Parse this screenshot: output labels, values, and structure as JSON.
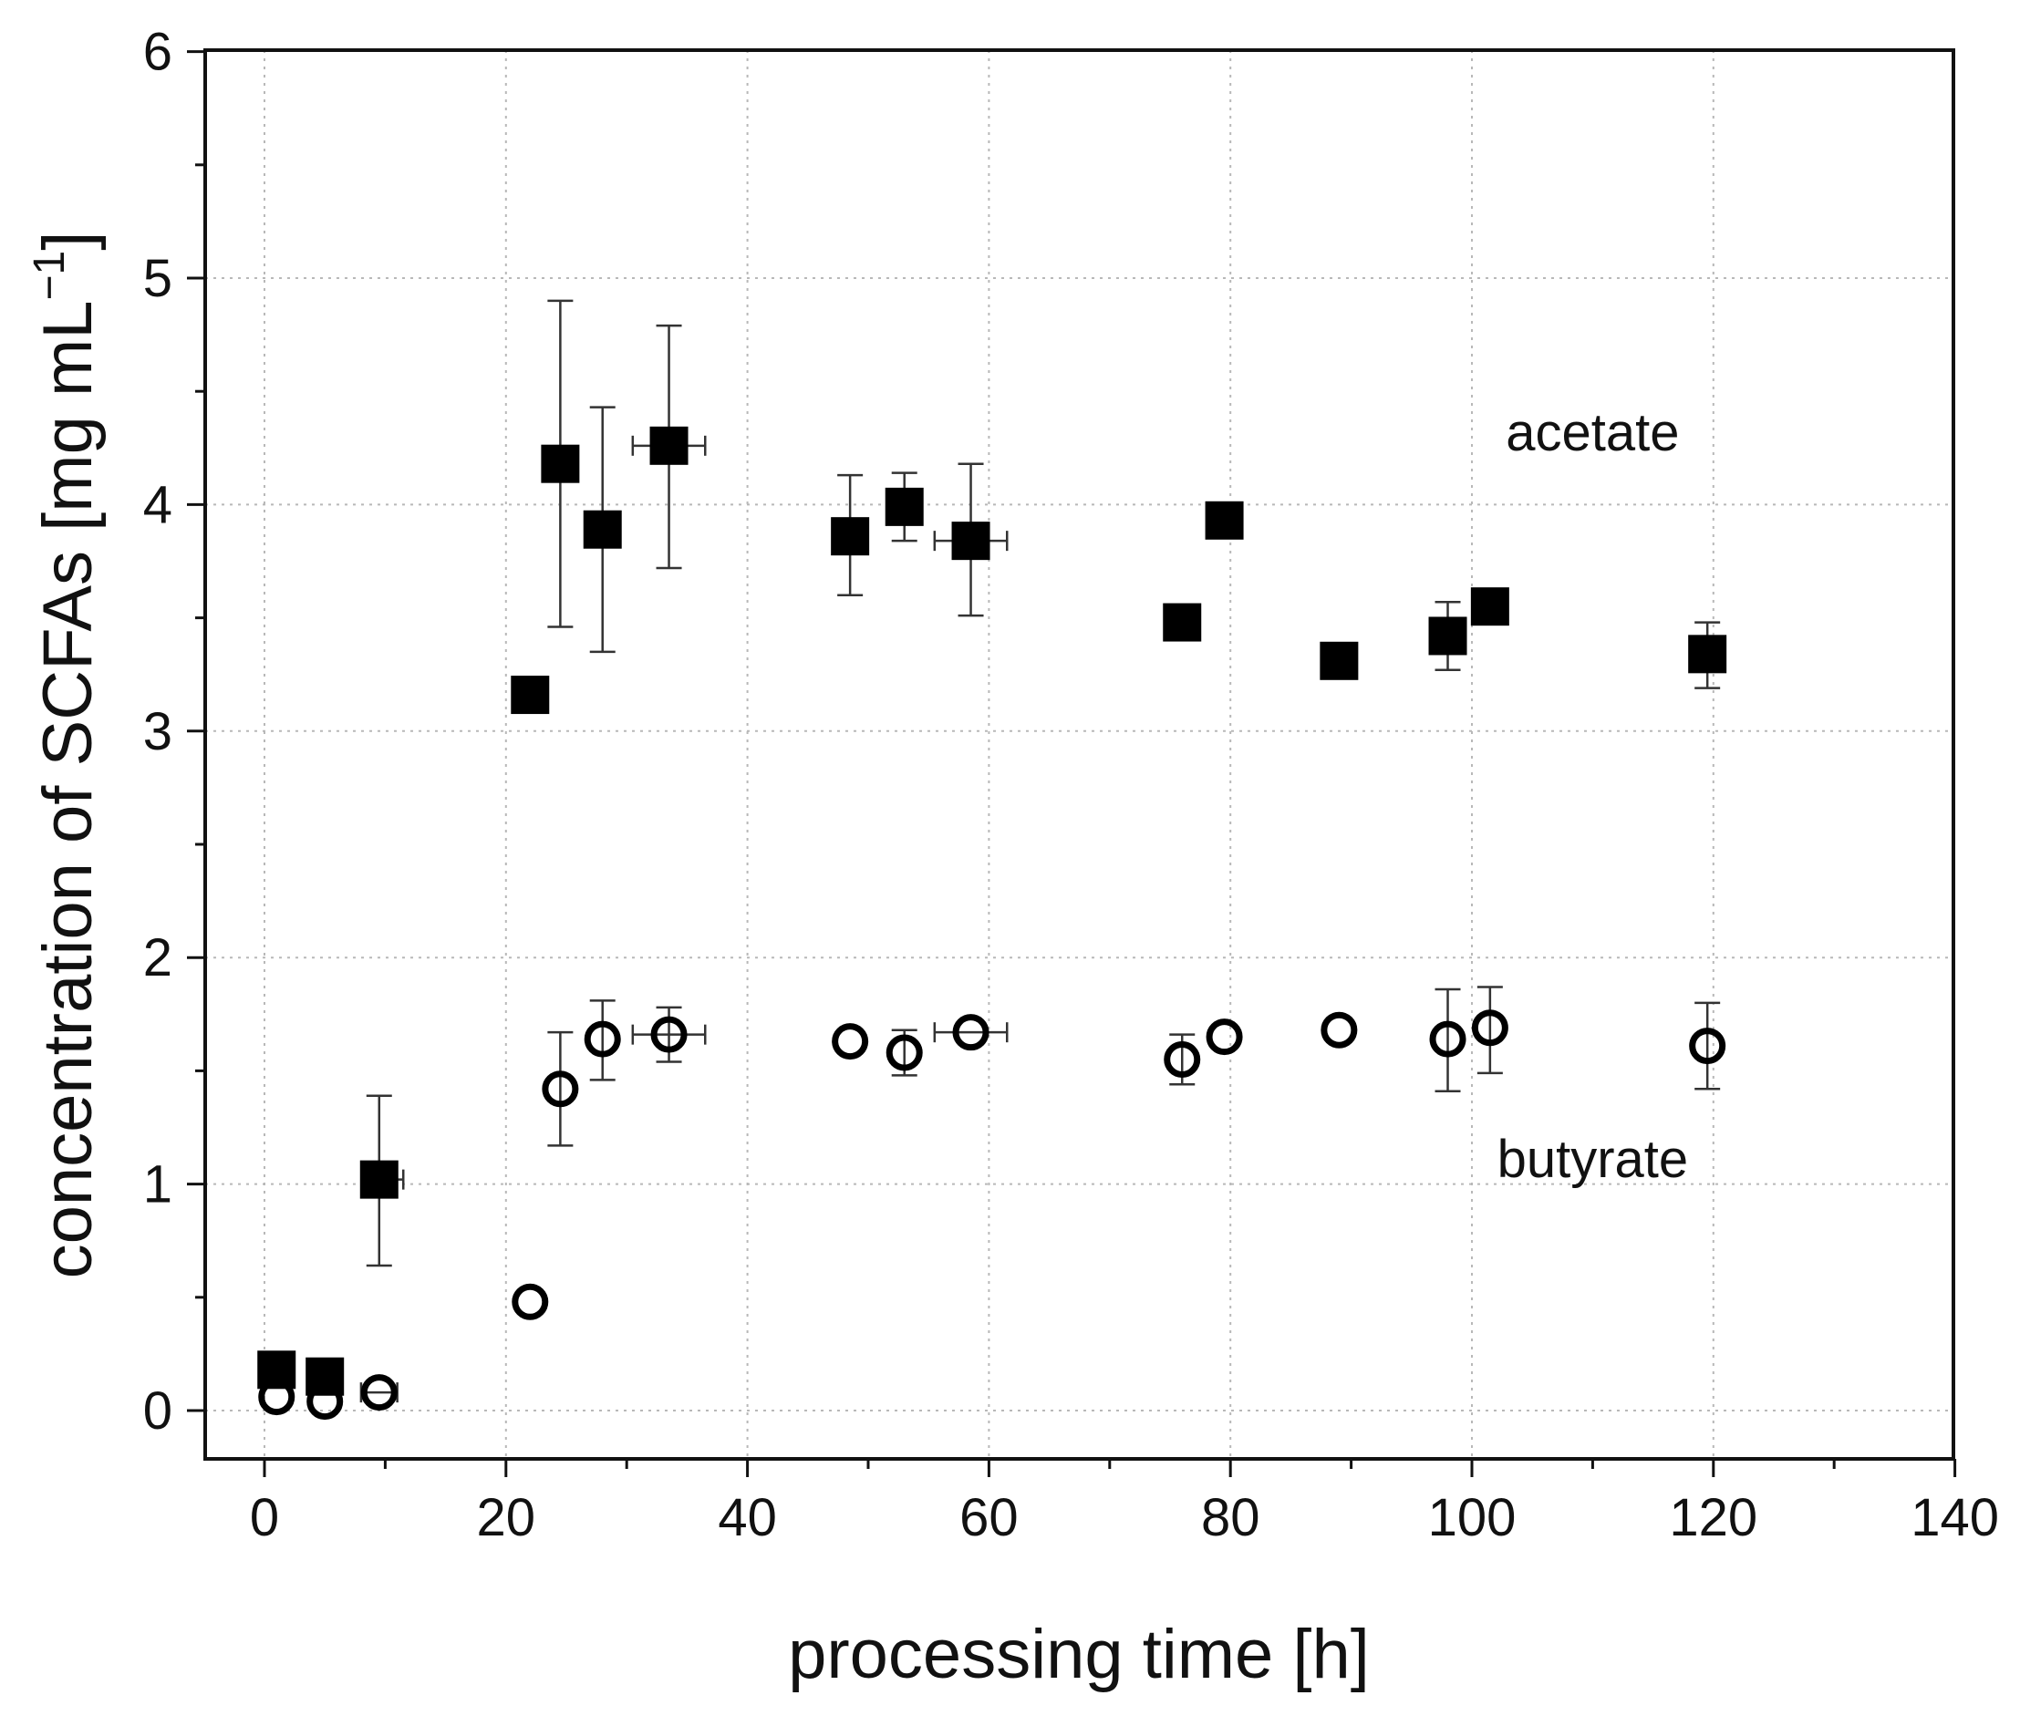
{
  "chart_data": {
    "type": "scatter",
    "title": "",
    "xlabel": "processing time [h]",
    "ylabel_main": "concentration of SCFAs [mg mL",
    "ylabel_sup": "−1",
    "ylabel_end": "]",
    "xlim": [
      -5,
      140
    ],
    "ylim": [
      -0.2,
      6
    ],
    "xticks": [
      0,
      20,
      40,
      60,
      80,
      100,
      120,
      140
    ],
    "yticks": [
      0,
      1,
      2,
      3,
      4,
      5,
      6
    ],
    "xminor": [
      10,
      30,
      50,
      70,
      90,
      110,
      130
    ],
    "yminor": [
      0.5,
      1.5,
      2.5,
      3.5,
      4.5,
      5.5
    ],
    "grid": true,
    "legend": "none",
    "annotations": [
      {
        "text": "acetate",
        "x": 110,
        "y": 4.24
      },
      {
        "text": "butyrate",
        "x": 110,
        "y": 1.03
      }
    ],
    "series": [
      {
        "name": "acetate",
        "marker": "filled-square",
        "points": [
          {
            "x": 1,
            "y": 0.18
          },
          {
            "x": 5,
            "y": 0.15
          },
          {
            "x": 9.5,
            "y": 1.02,
            "yerr": [
              0.64,
              1.39
            ],
            "xerr": [
              8.5,
              11.5
            ]
          },
          {
            "x": 22,
            "y": 3.16
          },
          {
            "x": 24.5,
            "y": 4.18,
            "yerr": [
              3.46,
              4.9
            ]
          },
          {
            "x": 28,
            "y": 3.89,
            "yerr": [
              3.35,
              4.43
            ]
          },
          {
            "x": 33.5,
            "y": 4.26,
            "yerr": [
              3.72,
              4.79
            ],
            "xerr": [
              30.5,
              36.5
            ]
          },
          {
            "x": 48.5,
            "y": 3.86,
            "yerr": [
              3.6,
              4.13
            ]
          },
          {
            "x": 53,
            "y": 3.99,
            "yerr": [
              3.84,
              4.14
            ]
          },
          {
            "x": 58.5,
            "y": 3.84,
            "yerr": [
              3.51,
              4.18
            ],
            "xerr": [
              55.5,
              61.5
            ]
          },
          {
            "x": 76,
            "y": 3.48
          },
          {
            "x": 79.5,
            "y": 3.93
          },
          {
            "x": 89,
            "y": 3.31
          },
          {
            "x": 98,
            "y": 3.42,
            "yerr": [
              3.27,
              3.57
            ]
          },
          {
            "x": 101.5,
            "y": 3.55
          },
          {
            "x": 119.5,
            "y": 3.34,
            "yerr": [
              3.19,
              3.48
            ]
          }
        ]
      },
      {
        "name": "butyrate",
        "marker": "open-circle",
        "points": [
          {
            "x": 1,
            "y": 0.06
          },
          {
            "x": 5,
            "y": 0.04
          },
          {
            "x": 9.5,
            "y": 0.08,
            "xerr": [
              8,
              11
            ]
          },
          {
            "x": 22,
            "y": 0.48
          },
          {
            "x": 24.5,
            "y": 1.42,
            "yerr": [
              1.17,
              1.67
            ]
          },
          {
            "x": 28,
            "y": 1.64,
            "yerr": [
              1.46,
              1.81
            ]
          },
          {
            "x": 33.5,
            "y": 1.66,
            "yerr": [
              1.54,
              1.78
            ],
            "xerr": [
              30.5,
              36.5
            ]
          },
          {
            "x": 48.5,
            "y": 1.63
          },
          {
            "x": 53,
            "y": 1.58,
            "yerr": [
              1.48,
              1.68
            ]
          },
          {
            "x": 58.5,
            "y": 1.67,
            "xerr": [
              55.5,
              61.5
            ]
          },
          {
            "x": 76,
            "y": 1.55,
            "yerr": [
              1.44,
              1.66
            ]
          },
          {
            "x": 79.5,
            "y": 1.65
          },
          {
            "x": 89,
            "y": 1.68
          },
          {
            "x": 98,
            "y": 1.64,
            "yerr": [
              1.41,
              1.86
            ]
          },
          {
            "x": 101.5,
            "y": 1.69,
            "yerr": [
              1.49,
              1.87
            ]
          },
          {
            "x": 119.5,
            "y": 1.61,
            "yerr": [
              1.42,
              1.8
            ]
          }
        ]
      }
    ]
  }
}
